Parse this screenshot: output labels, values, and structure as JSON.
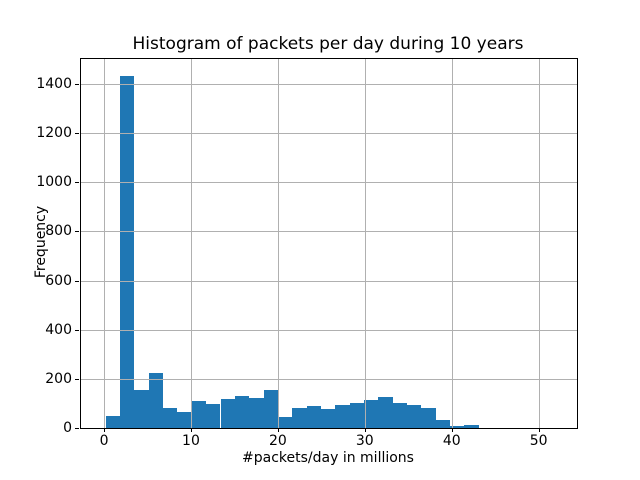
{
  "chart_data": {
    "type": "bar",
    "chart_kind": "histogram",
    "title": "Histogram of packets per day during 10 years",
    "xlabel": "#packets/day in millions",
    "ylabel": "Frequency",
    "bin_start": 0.2,
    "bin_width": 1.65,
    "frequencies": [
      50,
      1430,
      155,
      222,
      80,
      65,
      110,
      98,
      120,
      130,
      122,
      155,
      45,
      80,
      90,
      76,
      92,
      100,
      115,
      128,
      100,
      95,
      80,
      33,
      8,
      13
    ],
    "x_ticks": [
      0,
      10,
      20,
      30,
      40,
      50
    ],
    "y_ticks": [
      0,
      200,
      400,
      600,
      800,
      1000,
      1200,
      1400
    ],
    "xlim": [
      -2.65,
      54.41
    ],
    "ylim": [
      0,
      1501
    ],
    "grid": true,
    "legend_position": "none",
    "bar_color": "#1f77b4",
    "grid_color": "#b0b0b0",
    "axis_color": "#000000"
  }
}
